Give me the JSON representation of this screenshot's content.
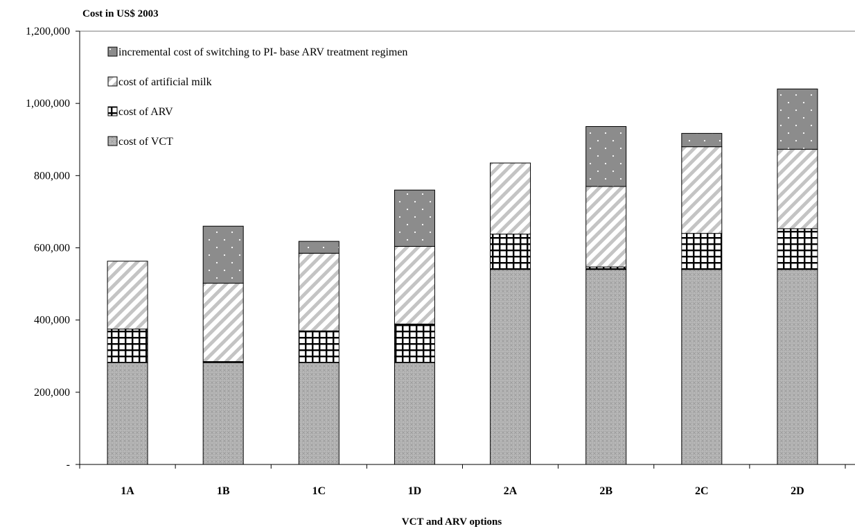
{
  "chart_data": {
    "type": "bar",
    "stacked": true,
    "ylabel": "Cost in US$ 2003",
    "xlabel": "VCT and ARV options",
    "categories": [
      "1A",
      "1B",
      "1C",
      "1D",
      "2A",
      "2B",
      "2C",
      "2D"
    ],
    "ylim": [
      0,
      1200000
    ],
    "yticks": [
      0,
      200000,
      400000,
      600000,
      800000,
      1000000,
      1200000
    ],
    "ytick_labels": [
      "-",
      "200,000",
      "400,000",
      "600,000",
      "800,000",
      "1,000,000",
      "1,200,000"
    ],
    "grid": false,
    "legend_position": "top-left",
    "legend_order": [
      "switch",
      "milk",
      "arv",
      "vct"
    ],
    "series": [
      {
        "key": "vct",
        "name": "cost of VCT",
        "pattern": "crosshatch-grey",
        "values": [
          282000,
          282000,
          282000,
          282000,
          540000,
          540000,
          540000,
          540000
        ]
      },
      {
        "key": "arv",
        "name": "cost of ARV",
        "pattern": "grid-black",
        "values": [
          93000,
          3000,
          88000,
          107000,
          98000,
          7000,
          100000,
          113000
        ]
      },
      {
        "key": "milk",
        "name": "cost of artificial milk",
        "pattern": "diagonal-light",
        "values": [
          188000,
          217000,
          215000,
          215000,
          197000,
          223000,
          240000,
          220000
        ]
      },
      {
        "key": "switch",
        "name": "incremental cost of switching to PI- base ARV treatment regimen",
        "pattern": "dots-dark",
        "values": [
          0,
          158000,
          33000,
          156000,
          0,
          166000,
          37000,
          167000
        ]
      }
    ]
  }
}
